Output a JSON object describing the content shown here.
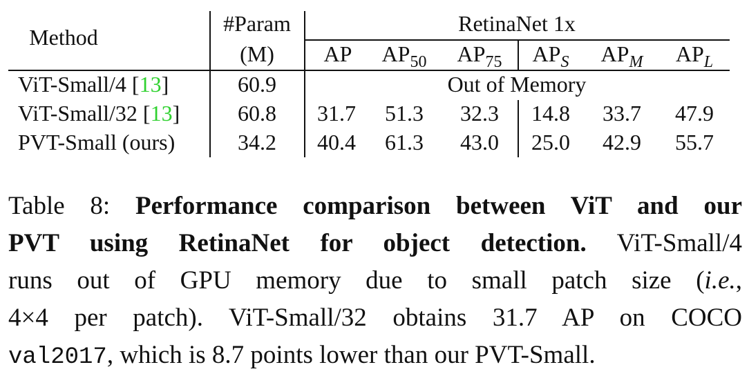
{
  "table": {
    "header": {
      "method": "Method",
      "param_line1": "#Param",
      "param_line2": "(M)",
      "group": "RetinaNet 1x",
      "ap": "AP",
      "ap50_base": "AP",
      "ap50_sub": "50",
      "ap75_base": "AP",
      "ap75_sub": "75",
      "aps_base": "AP",
      "aps_sub": "S",
      "apm_base": "AP",
      "apm_sub": "M",
      "apl_base": "AP",
      "apl_sub": "L"
    },
    "rows": [
      {
        "method": "ViT-Small/4 [",
        "cite": "13",
        "close": "]",
        "param": "60.9",
        "note": "Out of Memory"
      },
      {
        "method": "ViT-Small/32 [",
        "cite": "13",
        "close": "]",
        "param": "60.8",
        "ap": "31.7",
        "ap50": "51.3",
        "ap75": "32.3",
        "aps": "14.8",
        "apm": "33.7",
        "apl": "47.9"
      },
      {
        "method": "PVT-Small (ours)",
        "param": "34.2",
        "ap": "40.4",
        "ap50": "61.3",
        "ap75": "43.0",
        "aps": "25.0",
        "apm": "42.9",
        "apl": "55.7"
      }
    ]
  },
  "caption": {
    "label": "Table 8: ",
    "bold": "Performance comparison between ViT and our PVT using RetinaNet for object detection.",
    "bold_part1": "Performance comparison between ViT and our",
    "bold_part2": "PVT using RetinaNet for object detection.",
    "text_part1": " ViT-Small/4",
    "text_part2": "runs out of GPU memory due to small patch size (",
    "italic": "i.e.",
    "text_part3": ",",
    "text_part4": "4×4 per patch). ViT-Small/32 obtains 31.7 AP on COCO",
    "mono": "val2017",
    "text_part5": ", which is 8.7 points lower than our PVT-Small."
  }
}
